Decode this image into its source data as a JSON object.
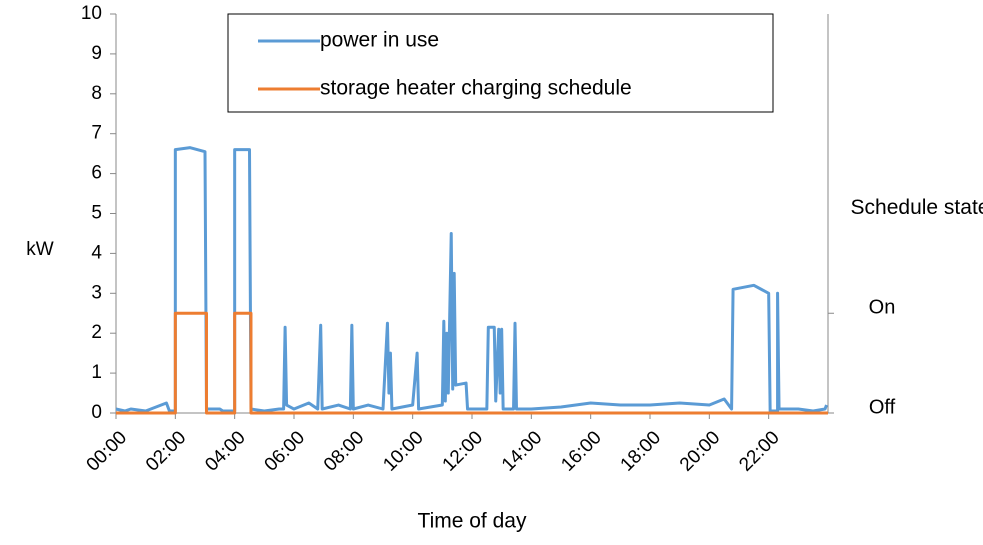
{
  "chart_data": {
    "type": "line",
    "xlabel": "Time of day",
    "ylabel": "kW",
    "y2label": "Schedule state",
    "xlim": [
      0,
      24
    ],
    "xticks": [
      {
        "value": 0,
        "label": "00:00"
      },
      {
        "value": 2,
        "label": "02:00"
      },
      {
        "value": 4,
        "label": "04:00"
      },
      {
        "value": 6,
        "label": "06:00"
      },
      {
        "value": 8,
        "label": "08:00"
      },
      {
        "value": 10,
        "label": "10:00"
      },
      {
        "value": 12,
        "label": "12:00"
      },
      {
        "value": 14,
        "label": "14:00"
      },
      {
        "value": 16,
        "label": "16:00"
      },
      {
        "value": 18,
        "label": "18:00"
      },
      {
        "value": 20,
        "label": "20:00"
      },
      {
        "value": 22,
        "label": "22:00"
      }
    ],
    "ylim": [
      0,
      10
    ],
    "yticks": [
      0,
      1,
      2,
      3,
      4,
      5,
      6,
      7,
      8,
      9,
      10
    ],
    "y2lim": [
      0,
      4
    ],
    "y2ticks": [
      {
        "value": 0,
        "label": "Off"
      },
      {
        "value": 1,
        "label": "On"
      }
    ],
    "legend": "top",
    "series": [
      {
        "name": "power in use",
        "color": "#5b9bd5",
        "x": [
          0,
          0.3,
          0.5,
          1.0,
          1.7,
          1.8,
          2.0,
          2.0,
          2.5,
          3.0,
          3.05,
          3.5,
          3.6,
          4.0,
          4.0,
          4.5,
          4.55,
          5.0,
          5.5,
          5.65,
          5.7,
          5.75,
          6.0,
          6.5,
          6.8,
          6.9,
          6.95,
          7.5,
          7.9,
          7.95,
          8.0,
          8.5,
          9.0,
          9.15,
          9.2,
          9.25,
          9.3,
          10.0,
          10.15,
          10.2,
          11.0,
          11.05,
          11.1,
          11.15,
          11.2,
          11.3,
          11.35,
          11.4,
          11.45,
          11.8,
          11.85,
          12.5,
          12.55,
          12.75,
          12.8,
          12.9,
          12.95,
          13.0,
          13.05,
          13.4,
          13.45,
          13.5,
          14,
          15,
          15.5,
          16,
          17,
          18,
          19,
          20,
          20.5,
          20.75,
          20.8,
          21.5,
          22.0,
          22.05,
          22.3,
          22.3,
          22.35,
          23,
          23.5,
          23.9,
          23.95
        ],
        "values": [
          0.1,
          0.05,
          0.1,
          0.05,
          0.25,
          0.05,
          0.05,
          6.6,
          6.65,
          6.55,
          0.1,
          0.1,
          0.05,
          0.05,
          6.6,
          6.6,
          0.1,
          0.05,
          0.1,
          0.1,
          2.15,
          0.2,
          0.1,
          0.25,
          0.1,
          2.2,
          0.1,
          0.2,
          0.1,
          2.2,
          0.1,
          0.2,
          0.1,
          2.25,
          0.5,
          1.5,
          0.1,
          0.2,
          1.5,
          0.1,
          0.2,
          2.3,
          0.3,
          2.0,
          0.5,
          4.5,
          0.6,
          3.5,
          0.7,
          0.75,
          0.1,
          0.1,
          2.15,
          2.15,
          0.3,
          2.1,
          0.5,
          2.1,
          0.1,
          0.1,
          2.25,
          0.1,
          0.1,
          0.15,
          0.2,
          0.25,
          0.2,
          0.2,
          0.25,
          0.2,
          0.35,
          0.1,
          3.1,
          3.2,
          3.0,
          0.05,
          0.05,
          3.0,
          0.1,
          0.1,
          0.05,
          0.1,
          0.2
        ]
      },
      {
        "name": "storage heater charging schedule",
        "color": "#ed7d31",
        "axis": "y2",
        "x": [
          0,
          2,
          2,
          3.05,
          3.05,
          4,
          4,
          4.55,
          4.55,
          24
        ],
        "values": [
          0,
          0,
          1,
          1,
          0,
          0,
          1,
          1,
          0,
          0
        ]
      }
    ]
  }
}
